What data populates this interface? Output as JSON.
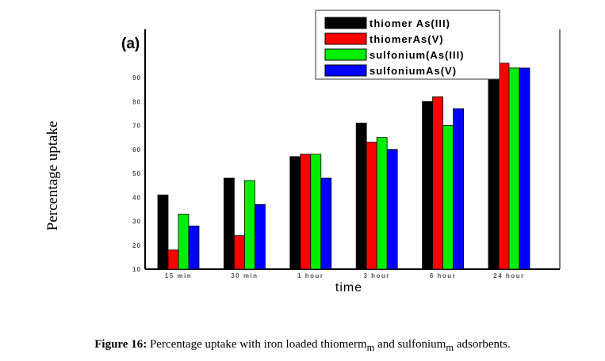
{
  "chart_data": {
    "type": "bar",
    "panel_label": "(a)",
    "title": "",
    "xlabel": "time",
    "ylabel": "Percentage uptake",
    "ylim": [
      10,
      100
    ],
    "yticks": [
      10,
      20,
      30,
      40,
      50,
      60,
      70,
      80,
      90
    ],
    "categories": [
      "15 min",
      "30 min",
      "1 hour",
      "3 hour",
      "6 hour",
      "24 hour"
    ],
    "series": [
      {
        "name": "thiomer As(III)",
        "color": "#000000",
        "values": [
          41,
          48,
          57,
          71,
          80,
          92
        ]
      },
      {
        "name": "thiomerAs(V)",
        "color": "#ff0000",
        "values": [
          18,
          24,
          58,
          63,
          82,
          96
        ]
      },
      {
        "name": "sulfonium(As(III)",
        "color": "#00ee00",
        "values": [
          33,
          47,
          58,
          65,
          70,
          94
        ]
      },
      {
        "name": "sulfoniumAs(V)",
        "color": "#0000ff",
        "values": [
          28,
          37,
          48,
          60,
          77,
          94
        ]
      }
    ],
    "legend_position": "top-right",
    "grid": false
  },
  "caption": {
    "label": "Figure 16:",
    "text_before": " Percentage uptake with iron loaded thiomerm",
    "sub1": "m",
    "text_mid": " and sulfonium",
    "sub2": "m",
    "text_after": " adsorbents."
  }
}
